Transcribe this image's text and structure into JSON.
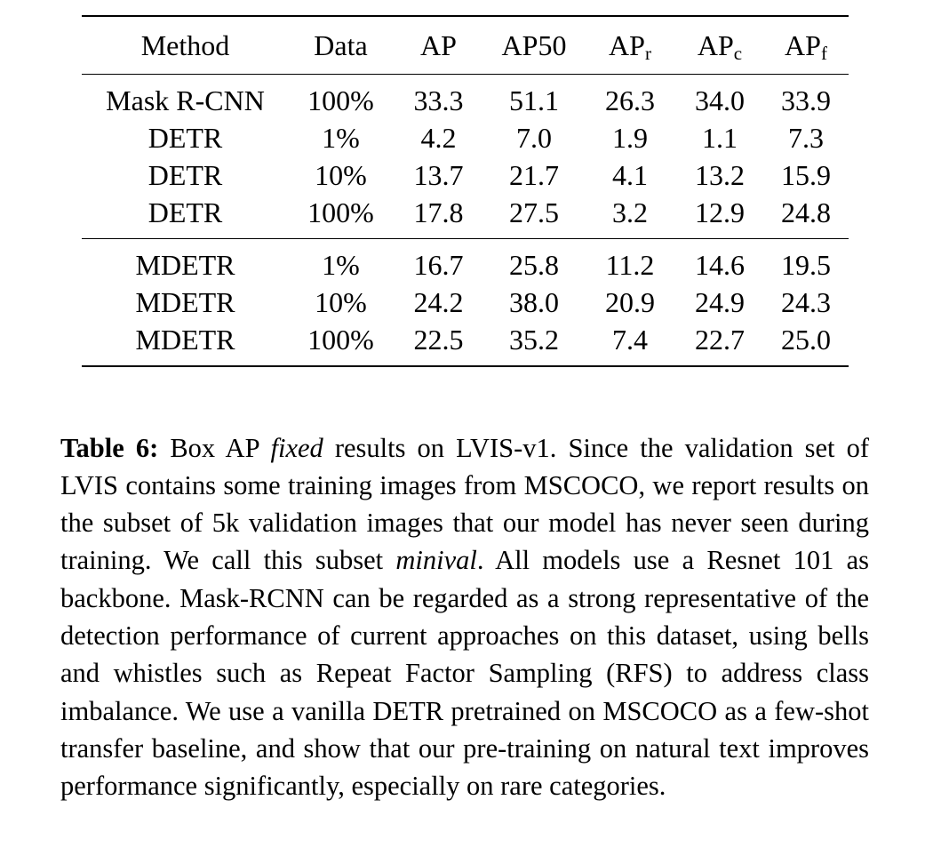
{
  "table": {
    "columns": [
      {
        "base": "Method",
        "sub": ""
      },
      {
        "base": "Data",
        "sub": ""
      },
      {
        "base": "AP",
        "sub": ""
      },
      {
        "base": "AP50",
        "sub": ""
      },
      {
        "base": "AP",
        "sub": "r"
      },
      {
        "base": "AP",
        "sub": "c"
      },
      {
        "base": "AP",
        "sub": "f"
      }
    ],
    "groups": [
      [
        [
          "Mask R-CNN",
          "100%",
          "33.3",
          "51.1",
          "26.3",
          "34.0",
          "33.9"
        ],
        [
          "DETR",
          "1%",
          "4.2",
          "7.0",
          "1.9",
          "1.1",
          "7.3"
        ],
        [
          "DETR",
          "10%",
          "13.7",
          "21.7",
          "4.1",
          "13.2",
          "15.9"
        ],
        [
          "DETR",
          "100%",
          "17.8",
          "27.5",
          "3.2",
          "12.9",
          "24.8"
        ]
      ],
      [
        [
          "MDETR",
          "1%",
          "16.7",
          "25.8",
          "11.2",
          "14.6",
          "19.5"
        ],
        [
          "MDETR",
          "10%",
          "24.2",
          "38.0",
          "20.9",
          "24.9",
          "24.3"
        ],
        [
          "MDETR",
          "100%",
          "22.5",
          "35.2",
          "7.4",
          "22.7",
          "25.0"
        ]
      ]
    ]
  },
  "caption": {
    "label": "Table 6:",
    "text_1": "Box AP",
    "emph_1": "fixed",
    "text_2": "results on LVIS-v1. Since the validation set of LVIS contains some training images from MSCOCO, we report results on the subset of 5k validation images that our model has never seen during training. We call this subset",
    "emph_2": "minival",
    "text_3": ". All models use a Resnet 101 as backbone. Mask-RCNN can be regarded as a strong representative of the detection performance of current approaches on this dataset, using bells and whistles such as Repeat Factor Sampling (RFS) to address class imbalance. We use a vanilla DETR pretrained on MSCOCO as a few-shot transfer baseline, and show that our pre-training on natural text improves performance significantly, especially on rare categories."
  }
}
